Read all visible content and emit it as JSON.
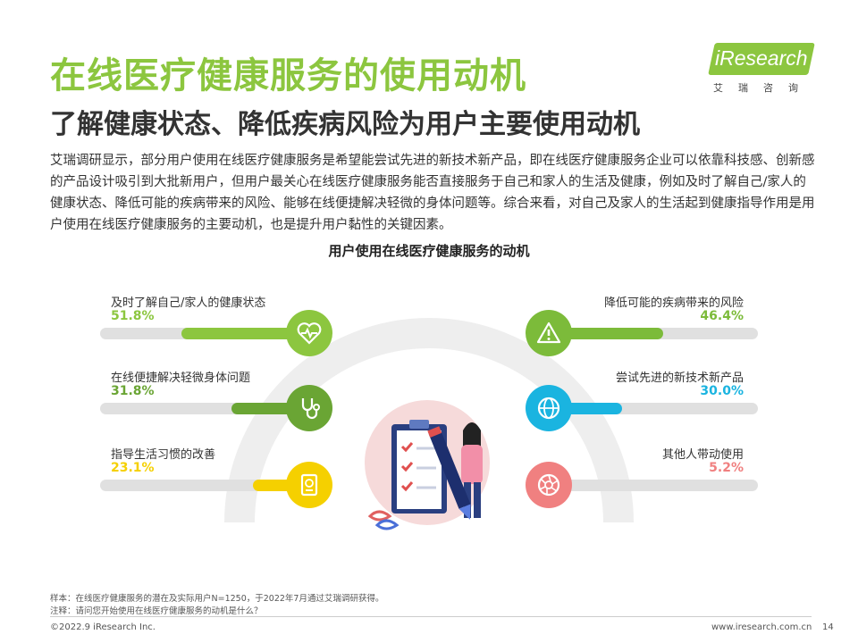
{
  "header": {
    "title": "在线医疗健康服务的使用动机",
    "subtitle": "了解健康状态、降低疾病风险为用户主要使用动机",
    "logo_text": "iResearch",
    "logo_cn": "艾瑞咨询"
  },
  "intro": "艾瑞调研显示，部分用户使用在线医疗健康服务是希望能尝试先进的新技术新产品，即在线医疗健康服务企业可以依靠科技感、创新感的产品设计吸引到大批新用户，但用户最关心在线医疗健康服务能否直接服务于自己和家人的生活及健康，例如及时了解自己/家人的健康状态、降低可能的疾病带来的风险、能够在线便捷解决轻微的身体问题等。综合来看，对自己及家人的生活起到健康指导作用是用户使用在线医疗健康服务的主要动机，也是提升用户黏性的关键因素。",
  "chart_data": {
    "type": "bar",
    "title": "用户使用在线医疗健康服务的动机",
    "unit": "%",
    "xlim": [
      0,
      100
    ],
    "items": [
      {
        "label": "及时了解自己/家人的健康状态",
        "pct_text": "51.8%",
        "value": 51.8,
        "side": "left",
        "color": "#8cc63f",
        "icon": "heart-pulse-icon"
      },
      {
        "label": "在线便捷解决轻微身体问题",
        "pct_text": "31.8%",
        "value": 31.8,
        "side": "left",
        "color": "#6aa534",
        "icon": "stethoscope-icon"
      },
      {
        "label": "指导生活习惯的改善",
        "pct_text": "23.1%",
        "value": 23.1,
        "side": "left",
        "color": "#f5d000",
        "icon": "passport-icon"
      },
      {
        "label": "降低可能的疾病带来的风险",
        "pct_text": "46.4%",
        "value": 46.4,
        "side": "right",
        "color": "#7cbb3a",
        "icon": "warning-icon"
      },
      {
        "label": "尝试先进的新技术新产品",
        "pct_text": "30.0%",
        "value": 30.0,
        "side": "right",
        "color": "#1ab4e0",
        "icon": "globe-icon"
      },
      {
        "label": "其他人带动使用",
        "pct_text": "5.2%",
        "value": 5.2,
        "side": "right",
        "color": "#f08080",
        "icon": "aperture-icon"
      }
    ]
  },
  "notes": {
    "sample": "样本：在线医疗健康服务的潜在及实际用户N=1250，于2022年7月通过艾瑞调研获得。",
    "remark": "注释：请问您开始使用在线医疗健康服务的动机是什么？"
  },
  "footer": {
    "copyright": "©2022.9 iResearch Inc.",
    "url": "www.iresearch.com.cn",
    "page": "14"
  },
  "colors": {
    "accent": "#8cc63f",
    "track": "#e0e0e0",
    "arc": "#eeeeee"
  }
}
